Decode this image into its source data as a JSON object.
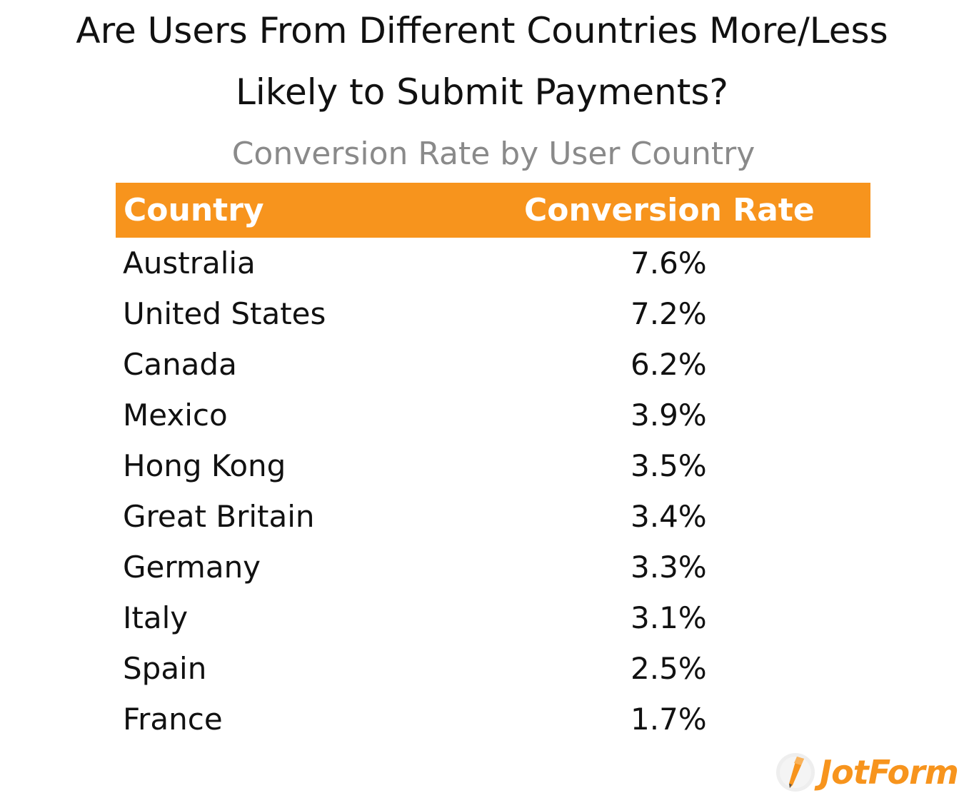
{
  "title": {
    "line1": "Are Users From Different Countries More/Less",
    "line2": "Likely to Submit Payments?"
  },
  "subtitle": "Conversion Rate by User Country",
  "chart_data": {
    "type": "table",
    "title": "Are Users From Different Countries More/Less Likely to Submit Payments?",
    "subtitle": "Conversion Rate by User Country",
    "columns": [
      "Country",
      "Conversion Rate"
    ],
    "rows": [
      {
        "country": "Australia",
        "rate": "7.6%"
      },
      {
        "country": "United States",
        "rate": "7.2%"
      },
      {
        "country": "Canada",
        "rate": "6.2%"
      },
      {
        "country": "Mexico",
        "rate": "3.9%"
      },
      {
        "country": "Hong Kong",
        "rate": "3.5%"
      },
      {
        "country": "Great Britain",
        "rate": "3.4%"
      },
      {
        "country": "Germany",
        "rate": "3.3%"
      },
      {
        "country": "Italy",
        "rate": "3.1%"
      },
      {
        "country": "Spain",
        "rate": "2.5%"
      },
      {
        "country": "France",
        "rate": "1.7%"
      }
    ]
  },
  "colors": {
    "header_bg": "#f7941d",
    "header_text": "#ffffff",
    "brand": "#f7941d"
  },
  "logo": {
    "text": "JotForm",
    "icon": "pencil-icon"
  }
}
